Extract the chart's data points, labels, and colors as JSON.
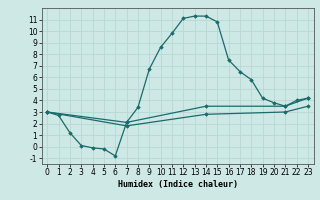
{
  "xlabel": "Humidex (Indice chaleur)",
  "ylabel": "",
  "xlim": [
    -0.5,
    23.5
  ],
  "ylim": [
    -1.5,
    12
  ],
  "yticks": [
    -1,
    0,
    1,
    2,
    3,
    4,
    5,
    6,
    7,
    8,
    9,
    10,
    11
  ],
  "xticks": [
    0,
    1,
    2,
    3,
    4,
    5,
    6,
    7,
    8,
    9,
    10,
    11,
    12,
    13,
    14,
    15,
    16,
    17,
    18,
    19,
    20,
    21,
    22,
    23
  ],
  "background_color": "#cde8e5",
  "grid_color": "#b8d8d5",
  "line_color": "#1a6b6b",
  "line1_x": [
    0,
    1,
    2,
    3,
    4,
    5,
    6,
    7,
    8,
    9,
    10,
    11,
    12,
    13,
    14,
    15,
    16,
    17,
    18,
    19,
    20,
    21,
    22,
    23
  ],
  "line1_y": [
    3.0,
    2.7,
    1.2,
    0.1,
    -0.1,
    -0.2,
    -0.8,
    2.1,
    3.4,
    6.7,
    8.6,
    9.8,
    11.1,
    11.3,
    11.3,
    10.8,
    7.5,
    6.5,
    5.8,
    4.2,
    3.8,
    3.5,
    4.0,
    4.2
  ],
  "line2_x": [
    0,
    7,
    14,
    21,
    23
  ],
  "line2_y": [
    3.0,
    2.1,
    3.5,
    3.5,
    4.2
  ],
  "line3_x": [
    0,
    7,
    14,
    21,
    23
  ],
  "line3_y": [
    3.0,
    1.8,
    2.8,
    3.0,
    3.5
  ]
}
